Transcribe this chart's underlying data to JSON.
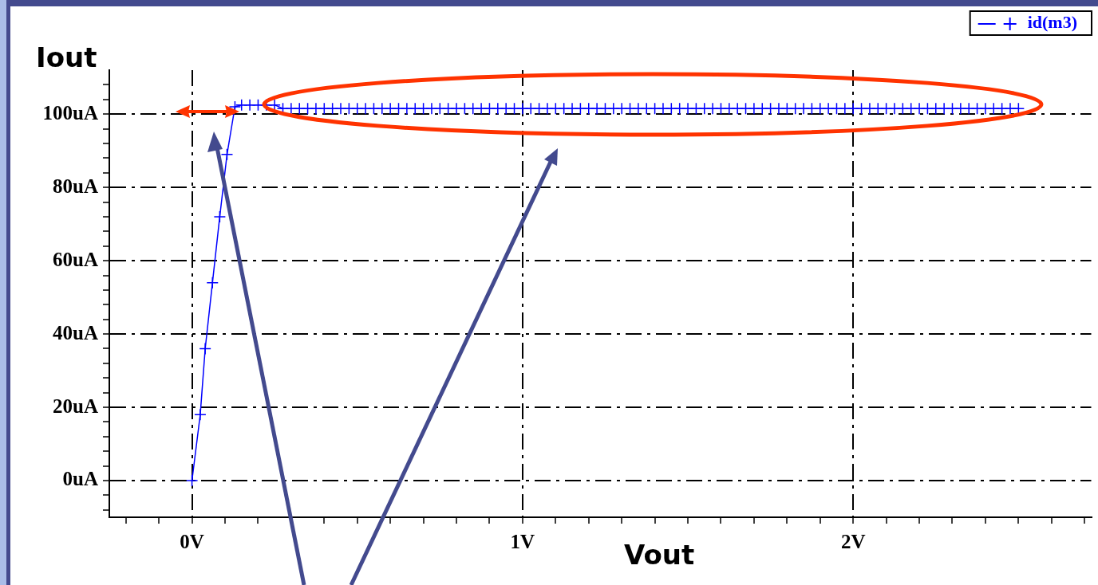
{
  "chart_data": {
    "type": "line",
    "xlabel": "Vout",
    "ylabel": "Iout",
    "legend": "top right",
    "marker": "cross",
    "line_style": "solid",
    "grid": true,
    "xlim": [
      -0.25,
      2.72
    ],
    "ylim": [
      -10,
      112
    ],
    "xticks": [
      {
        "value": -0.2,
        "label": null
      },
      {
        "value": -0.1,
        "label": null
      },
      {
        "value": 0,
        "label": "0V"
      },
      {
        "value": 0.1,
        "label": null
      },
      {
        "value": 0.2,
        "label": null
      },
      {
        "value": 0.3,
        "label": null
      },
      {
        "value": 0.4,
        "label": null
      },
      {
        "value": 0.5,
        "label": null
      },
      {
        "value": 0.6,
        "label": null
      },
      {
        "value": 0.7,
        "label": null
      },
      {
        "value": 0.8,
        "label": null
      },
      {
        "value": 0.9,
        "label": null
      },
      {
        "value": 1,
        "label": "1V"
      },
      {
        "value": 1.1,
        "label": null
      },
      {
        "value": 1.2,
        "label": null
      },
      {
        "value": 1.3,
        "label": null
      },
      {
        "value": 1.4,
        "label": null
      },
      {
        "value": 1.5,
        "label": null
      },
      {
        "value": 1.6,
        "label": null
      },
      {
        "value": 1.7,
        "label": null
      },
      {
        "value": 1.8,
        "label": null
      },
      {
        "value": 1.9,
        "label": null
      },
      {
        "value": 2,
        "label": "2V"
      },
      {
        "value": 2.1,
        "label": null
      },
      {
        "value": 2.2,
        "label": null
      },
      {
        "value": 2.3,
        "label": null
      },
      {
        "value": 2.4,
        "label": null
      },
      {
        "value": 2.5,
        "label": null
      },
      {
        "value": 2.6,
        "label": null
      },
      {
        "value": 2.7,
        "label": null
      }
    ],
    "yticks": [
      {
        "value": -8,
        "label": null
      },
      {
        "value": -4,
        "label": null
      },
      {
        "value": 0,
        "label": "0uA"
      },
      {
        "value": 4,
        "label": null
      },
      {
        "value": 8,
        "label": null
      },
      {
        "value": 12,
        "label": null
      },
      {
        "value": 16,
        "label": null
      },
      {
        "value": 20,
        "label": "20uA"
      },
      {
        "value": 24,
        "label": null
      },
      {
        "value": 28,
        "label": null
      },
      {
        "value": 32,
        "label": null
      },
      {
        "value": 36,
        "label": null
      },
      {
        "value": 40,
        "label": "40uA"
      },
      {
        "value": 44,
        "label": null
      },
      {
        "value": 48,
        "label": null
      },
      {
        "value": 52,
        "label": null
      },
      {
        "value": 56,
        "label": null
      },
      {
        "value": 60,
        "label": "60uA"
      },
      {
        "value": 64,
        "label": null
      },
      {
        "value": 68,
        "label": null
      },
      {
        "value": 72,
        "label": null
      },
      {
        "value": 76,
        "label": null
      },
      {
        "value": 80,
        "label": "80uA"
      },
      {
        "value": 84,
        "label": null
      },
      {
        "value": 88,
        "label": null
      },
      {
        "value": 92,
        "label": null
      },
      {
        "value": 96,
        "label": null
      },
      {
        "value": 100,
        "label": "100uA"
      },
      {
        "value": 104,
        "label": null
      },
      {
        "value": 108,
        "label": null
      }
    ],
    "x": [
      0,
      0.025,
      0.04,
      0.062,
      0.084,
      0.106,
      0.13,
      0.15,
      0.175,
      0.2,
      0.225,
      0.25,
      0.275,
      0.3,
      0.325,
      0.35,
      0.375,
      0.4,
      0.425,
      0.45,
      0.475,
      0.5,
      0.525,
      0.55,
      0.575,
      0.6,
      0.625,
      0.65,
      0.675,
      0.7,
      0.725,
      0.75,
      0.775,
      0.8,
      0.825,
      0.85,
      0.875,
      0.9,
      0.925,
      0.95,
      0.975,
      1,
      1.025,
      1.05,
      1.075,
      1.1,
      1.125,
      1.15,
      1.175,
      1.2,
      1.225,
      1.25,
      1.275,
      1.3,
      1.325,
      1.35,
      1.375,
      1.4,
      1.425,
      1.45,
      1.475,
      1.5,
      1.525,
      1.55,
      1.575,
      1.6,
      1.625,
      1.65,
      1.675,
      1.7,
      1.725,
      1.75,
      1.775,
      1.8,
      1.825,
      1.85,
      1.875,
      1.9,
      1.925,
      1.95,
      1.975,
      2,
      2.025,
      2.05,
      2.075,
      2.1,
      2.125,
      2.15,
      2.175,
      2.2,
      2.225,
      2.25,
      2.275,
      2.3,
      2.325,
      2.35,
      2.375,
      2.4,
      2.425,
      2.45,
      2.475,
      2.5
    ],
    "series": [
      {
        "name": "id(m3)",
        "color": "#0000ff",
        "values": [
          0,
          18,
          36,
          54,
          72,
          89,
          102,
          102.5,
          102.5,
          102.5,
          102.5,
          102.5,
          101.5,
          101.5,
          101.5,
          101.5,
          101.5,
          101.5,
          101.5,
          101.5,
          101.5,
          101.5,
          101.5,
          101.5,
          101.5,
          101.5,
          101.5,
          101.5,
          101.5,
          101.5,
          101.5,
          101.5,
          101.5,
          101.5,
          101.5,
          101.5,
          101.5,
          101.5,
          101.5,
          101.5,
          101.5,
          101.5,
          101.5,
          101.5,
          101.5,
          101.5,
          101.5,
          101.5,
          101.5,
          101.5,
          101.5,
          101.5,
          101.5,
          101.5,
          101.5,
          101.5,
          101.5,
          101.5,
          101.5,
          101.5,
          101.5,
          101.5,
          101.5,
          101.5,
          101.5,
          101.5,
          101.5,
          101.5,
          101.5,
          101.5,
          101.5,
          101.5,
          101.5,
          101.5,
          101.5,
          101.5,
          101.5,
          101.5,
          101.5,
          101.5,
          101.5,
          101.5,
          101.5,
          101.5,
          101.5,
          101.5,
          101.5,
          101.5,
          101.5,
          101.5,
          101.5,
          101.5,
          101.5,
          101.5,
          101.5,
          101.5,
          101.5,
          101.5,
          101.5,
          101.5,
          101.5,
          101.5
        ]
      }
    ]
  }
}
